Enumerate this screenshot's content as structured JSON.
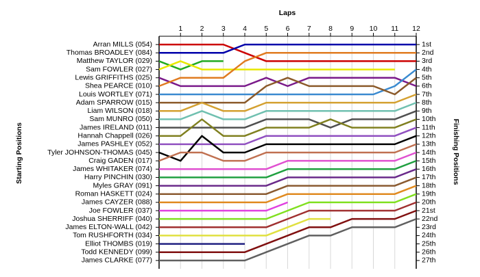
{
  "chart_data": {
    "type": "line",
    "title": "Laps",
    "y_label_left": "Starting Positions",
    "y_label_right": "Finishing Positions",
    "x": [
      0,
      1,
      2,
      3,
      4,
      5,
      6,
      7,
      8,
      9,
      10,
      11,
      12
    ],
    "xlim": [
      0,
      12
    ],
    "xticks": [
      1,
      2,
      3,
      4,
      5,
      6,
      7,
      8,
      9,
      10,
      11,
      12
    ],
    "ylim": [
      0,
      28
    ],
    "y_inverted": true,
    "grid": true,
    "finishing_labels": [
      "1st",
      "2nd",
      "3rd",
      "4th",
      "5th",
      "6th",
      "7th",
      "8th",
      "9th",
      "10th",
      "11th",
      "12th",
      "13th",
      "14th",
      "15th",
      "16th",
      "17th",
      "18th",
      "19th",
      "20th",
      "21st",
      "22nd",
      "23rd",
      "24th",
      "25th",
      "26th",
      "27th"
    ],
    "series": [
      {
        "name": "Arran MILLS (054)",
        "color": "#cc0000",
        "values": [
          1,
          1,
          1,
          1,
          2,
          3,
          3,
          3,
          3,
          3,
          3,
          3,
          3
        ]
      },
      {
        "name": "Thomas BROADLEY (084)",
        "color": "#0000aa",
        "values": [
          2,
          2,
          2,
          2,
          1,
          1,
          1,
          1,
          1,
          1,
          1,
          1,
          1
        ]
      },
      {
        "name": "Matthew TAYLOR (029)",
        "color": "#22aa22",
        "values": [
          3,
          4,
          3,
          3,
          null,
          null,
          null,
          null,
          null,
          null,
          null,
          null,
          null
        ]
      },
      {
        "name": "Sam FOWLER (027)",
        "color": "#e8e800",
        "values": [
          4,
          3,
          4,
          4,
          4,
          4,
          4,
          4,
          4,
          4,
          4,
          4,
          null
        ]
      },
      {
        "name": "Lewis GRIFFITHS (025)",
        "color": "#7a1a8a",
        "values": [
          5,
          6,
          6,
          6,
          6,
          5,
          6,
          5,
          5,
          5,
          5,
          5,
          6
        ]
      },
      {
        "name": "Shea PEARCE (010)",
        "color": "#e07b20",
        "values": [
          6,
          5,
          5,
          5,
          3,
          2,
          2,
          2,
          2,
          2,
          2,
          2,
          2
        ]
      },
      {
        "name": "Louis WORTLEY (071)",
        "color": "#3a8ad0",
        "values": [
          7,
          7,
          7,
          7,
          7,
          7,
          7,
          7,
          7,
          7,
          7,
          6,
          4
        ]
      },
      {
        "name": "Adam SPARROW (015)",
        "color": "#8b5a2a",
        "values": [
          8,
          8,
          8,
          8,
          8,
          6,
          5,
          6,
          6,
          6,
          6,
          7,
          5
        ]
      },
      {
        "name": "Liam WILSON (018)",
        "color": "#d4a030",
        "values": [
          9,
          9,
          8,
          9,
          9,
          8,
          8,
          8,
          8,
          8,
          8,
          8,
          7
        ]
      },
      {
        "name": "Sam MUNRO (050)",
        "color": "#70c0b0",
        "values": [
          10,
          10,
          9,
          10,
          10,
          9,
          9,
          9,
          9,
          9,
          9,
          9,
          8
        ]
      },
      {
        "name": "James IRELAND (011)",
        "color": "#505050",
        "values": [
          11,
          11,
          11,
          11,
          11,
          10,
          10,
          10,
          11,
          10,
          10,
          10,
          9
        ]
      },
      {
        "name": "Hannah Chappell (026)",
        "color": "#808020",
        "values": [
          12,
          12,
          10,
          12,
          12,
          11,
          11,
          11,
          10,
          11,
          11,
          11,
          10
        ]
      },
      {
        "name": "James PASHLEY (052)",
        "color": "#9050c0",
        "values": [
          13,
          13,
          13,
          13,
          13,
          12,
          12,
          12,
          12,
          12,
          12,
          12,
          11
        ]
      },
      {
        "name": "Tyler JOHNSON-THOMAS (045)",
        "color": "#000000",
        "values": [
          14,
          15,
          12,
          14,
          14,
          13,
          13,
          13,
          13,
          13,
          13,
          13,
          12
        ]
      },
      {
        "name": "Craig GADEN (017)",
        "color": "#c07050",
        "values": [
          15,
          14,
          14,
          15,
          15,
          14,
          14,
          14,
          14,
          14,
          14,
          14,
          13
        ]
      },
      {
        "name": "James WHITAKER (074)",
        "color": "#e050d0",
        "values": [
          16,
          16,
          16,
          16,
          16,
          16,
          15,
          15,
          15,
          15,
          15,
          15,
          14
        ]
      },
      {
        "name": "Harry PINCHIN (030)",
        "color": "#20a040",
        "values": [
          17,
          17,
          17,
          17,
          17,
          17,
          16,
          16,
          16,
          16,
          16,
          16,
          15
        ]
      },
      {
        "name": "Myles GRAY (091)",
        "color": "#6a2a8a",
        "values": [
          18,
          18,
          18,
          18,
          18,
          18,
          17,
          17,
          17,
          17,
          17,
          17,
          16
        ]
      },
      {
        "name": "Roman HASKETT (024)",
        "color": "#8a5a30",
        "values": [
          19,
          19,
          19,
          19,
          19,
          19,
          18,
          18,
          18,
          18,
          18,
          18,
          17
        ]
      },
      {
        "name": "James CAYZER (088)",
        "color": "#e08a20",
        "values": [
          20,
          20,
          20,
          20,
          20,
          20,
          19,
          19,
          19,
          19,
          19,
          19,
          18
        ]
      },
      {
        "name": "Joe FOWLER (037)",
        "color": "#e040e0",
        "values": [
          21,
          21,
          21,
          21,
          21,
          21,
          20,
          null,
          null,
          null,
          null,
          null,
          null
        ]
      },
      {
        "name": "Joshua SHERRIFF (040)",
        "color": "#80e020",
        "values": [
          22,
          22,
          22,
          22,
          22,
          22,
          21,
          20,
          20,
          20,
          20,
          20,
          19
        ]
      },
      {
        "name": "James ELTON-WALL (042)",
        "color": "#a03030",
        "values": [
          23,
          23,
          23,
          23,
          23,
          23,
          22,
          21,
          21,
          21,
          21,
          21,
          20
        ]
      },
      {
        "name": "Tom RUSHFORTH (034)",
        "color": "#e0e040",
        "values": [
          24,
          24,
          24,
          24,
          24,
          24,
          23,
          22,
          22,
          null,
          null,
          null,
          null
        ]
      },
      {
        "name": "Elliot THOMBS (019)",
        "color": "#202080",
        "values": [
          25,
          25,
          25,
          25,
          25,
          null,
          null,
          null,
          null,
          null,
          null,
          null,
          null
        ]
      },
      {
        "name": "Todd KENNEDY (099)",
        "color": "#801010",
        "values": [
          26,
          26,
          26,
          26,
          26,
          25,
          24,
          23,
          23,
          22,
          22,
          22,
          21
        ]
      },
      {
        "name": "James CLARKE (077)",
        "color": "#606060",
        "values": [
          27,
          27,
          27,
          27,
          27,
          26,
          25,
          24,
          24,
          23,
          23,
          23,
          22
        ]
      }
    ]
  }
}
